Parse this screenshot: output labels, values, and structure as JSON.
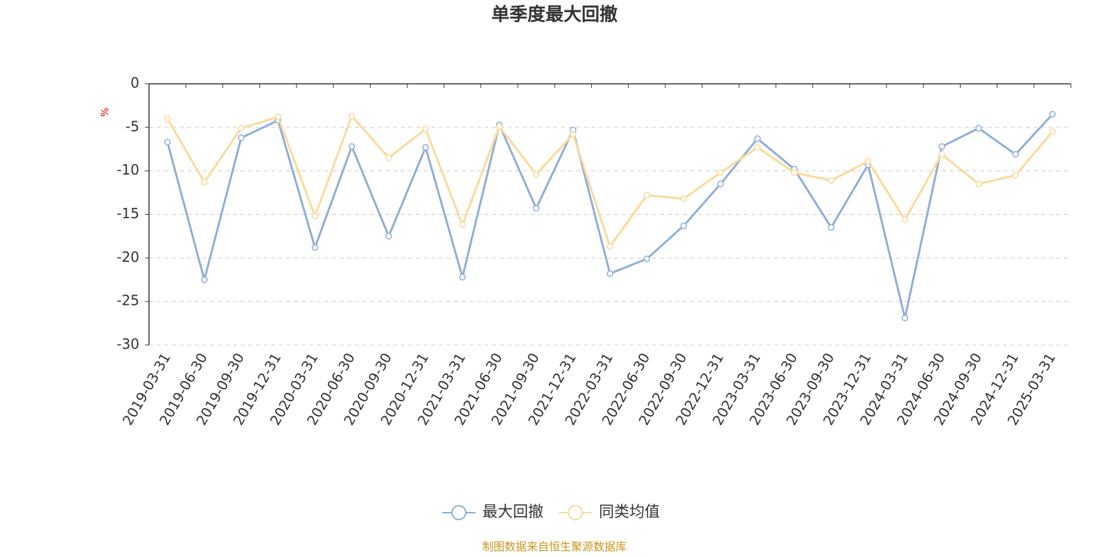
{
  "chart_data": {
    "type": "line",
    "title": "单季度最大回撤",
    "y_label": "%",
    "source": "制图数据来自恒生聚源数据库",
    "categories": [
      "2019-03-31",
      "2019-06-30",
      "2019-09-30",
      "2019-12-31",
      "2020-03-31",
      "2020-06-30",
      "2020-09-30",
      "2020-12-31",
      "2021-03-31",
      "2021-06-30",
      "2021-09-30",
      "2021-12-31",
      "2022-03-31",
      "2022-06-30",
      "2022-09-30",
      "2022-12-31",
      "2023-03-31",
      "2023-06-30",
      "2023-09-30",
      "2023-12-31",
      "2024-03-31",
      "2024-06-30",
      "2024-09-30",
      "2024-12-31",
      "2025-03-31"
    ],
    "series": [
      {
        "name": "最大回撤",
        "color": "#8eaed8",
        "values": [
          -6.7,
          -22.5,
          -6.2,
          -4.2,
          -18.8,
          -7.2,
          -17.5,
          -7.3,
          -22.2,
          -4.7,
          -14.3,
          -5.3,
          -21.8,
          -20.1,
          -16.3,
          -11.5,
          -6.3,
          -9.8,
          -16.5,
          -9.3,
          -26.9,
          -7.2,
          -5.1,
          -8.1,
          -3.5
        ]
      },
      {
        "name": "同类均值",
        "color": "#fcd99a",
        "values": [
          -4.0,
          -11.3,
          -5.1,
          -3.8,
          -15.2,
          -3.7,
          -8.5,
          -5.2,
          -16.2,
          -4.9,
          -10.4,
          -5.8,
          -18.7,
          -12.8,
          -13.2,
          -10.2,
          -7.3,
          -10.2,
          -11.1,
          -8.9,
          -15.6,
          -8.1,
          -11.5,
          -10.5,
          -5.5
        ]
      }
    ],
    "ylim": [
      -30,
      0
    ],
    "yticks": [
      0,
      -5,
      -10,
      -15,
      -20,
      -25,
      -30
    ],
    "grid": true
  }
}
